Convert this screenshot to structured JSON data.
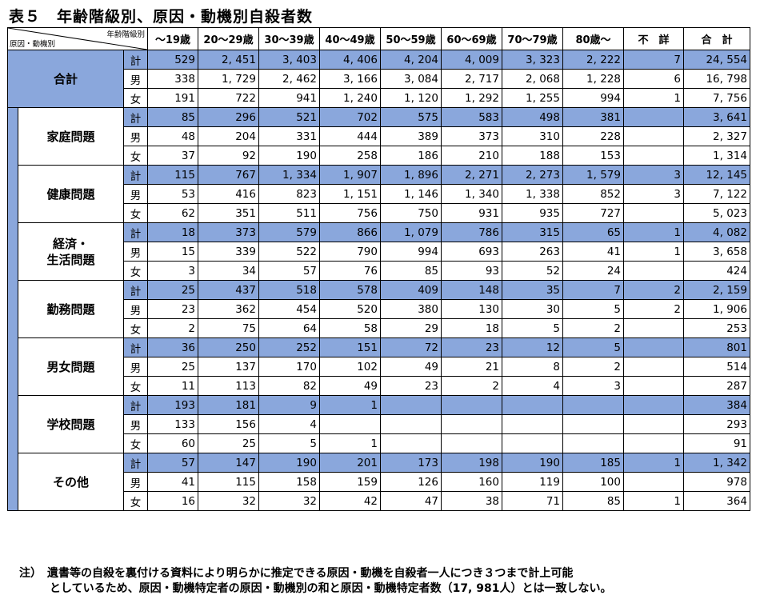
{
  "title": "表５　年齢階級別、原因・動機別自殺者数",
  "corner": {
    "top": "年齢階級別",
    "bottom": "原因・動機別"
  },
  "columns": [
    "～19歳",
    "20～29歳",
    "30～39歳",
    "40～49歳",
    "50～59歳",
    "60～69歳",
    "70～79歳",
    "80歳～",
    "不　詳",
    "合　計"
  ],
  "sex_labels": {
    "total": "計",
    "male": "男",
    "female": "女"
  },
  "groups": [
    {
      "label": "合計",
      "rows": {
        "total": [
          "529",
          "2, 451",
          "3, 403",
          "4, 406",
          "4, 204",
          "4, 009",
          "3, 323",
          "2, 222",
          "7",
          "24, 554"
        ],
        "male": [
          "338",
          "1, 729",
          "2, 462",
          "3, 166",
          "3, 084",
          "2, 717",
          "2, 068",
          "1, 228",
          "6",
          "16, 798"
        ],
        "female": [
          "191",
          "722",
          "941",
          "1, 240",
          "1, 120",
          "1, 292",
          "1, 255",
          "994",
          "1",
          "7, 756"
        ]
      }
    },
    {
      "label": "家庭問題",
      "rows": {
        "total": [
          "85",
          "296",
          "521",
          "702",
          "575",
          "583",
          "498",
          "381",
          "",
          "3, 641"
        ],
        "male": [
          "48",
          "204",
          "331",
          "444",
          "389",
          "373",
          "310",
          "228",
          "",
          "2, 327"
        ],
        "female": [
          "37",
          "92",
          "190",
          "258",
          "186",
          "210",
          "188",
          "153",
          "",
          "1, 314"
        ]
      }
    },
    {
      "label": "健康問題",
      "rows": {
        "total": [
          "115",
          "767",
          "1, 334",
          "1, 907",
          "1, 896",
          "2, 271",
          "2, 273",
          "1, 579",
          "3",
          "12, 145"
        ],
        "male": [
          "53",
          "416",
          "823",
          "1, 151",
          "1, 146",
          "1, 340",
          "1, 338",
          "852",
          "3",
          "7, 122"
        ],
        "female": [
          "62",
          "351",
          "511",
          "756",
          "750",
          "931",
          "935",
          "727",
          "",
          "5, 023"
        ]
      }
    },
    {
      "label": "経済・\n生活問題",
      "rows": {
        "total": [
          "18",
          "373",
          "579",
          "866",
          "1, 079",
          "786",
          "315",
          "65",
          "1",
          "4, 082"
        ],
        "male": [
          "15",
          "339",
          "522",
          "790",
          "994",
          "693",
          "263",
          "41",
          "1",
          "3, 658"
        ],
        "female": [
          "3",
          "34",
          "57",
          "76",
          "85",
          "93",
          "52",
          "24",
          "",
          "424"
        ]
      }
    },
    {
      "label": "勤務問題",
      "rows": {
        "total": [
          "25",
          "437",
          "518",
          "578",
          "409",
          "148",
          "35",
          "7",
          "2",
          "2, 159"
        ],
        "male": [
          "23",
          "362",
          "454",
          "520",
          "380",
          "130",
          "30",
          "5",
          "2",
          "1, 906"
        ],
        "female": [
          "2",
          "75",
          "64",
          "58",
          "29",
          "18",
          "5",
          "2",
          "",
          "253"
        ]
      }
    },
    {
      "label": "男女問題",
      "rows": {
        "total": [
          "36",
          "250",
          "252",
          "151",
          "72",
          "23",
          "12",
          "5",
          "",
          "801"
        ],
        "male": [
          "25",
          "137",
          "170",
          "102",
          "49",
          "21",
          "8",
          "2",
          "",
          "514"
        ],
        "female": [
          "11",
          "113",
          "82",
          "49",
          "23",
          "2",
          "4",
          "3",
          "",
          "287"
        ]
      }
    },
    {
      "label": "学校問題",
      "rows": {
        "total": [
          "193",
          "181",
          "9",
          "1",
          "",
          "",
          "",
          "",
          "",
          "384"
        ],
        "male": [
          "133",
          "156",
          "4",
          "",
          "",
          "",
          "",
          "",
          "",
          "293"
        ],
        "female": [
          "60",
          "25",
          "5",
          "1",
          "",
          "",
          "",
          "",
          "",
          "91"
        ]
      }
    },
    {
      "label": "その他",
      "rows": {
        "total": [
          "57",
          "147",
          "190",
          "201",
          "173",
          "198",
          "190",
          "185",
          "1",
          "1, 342"
        ],
        "male": [
          "41",
          "115",
          "158",
          "159",
          "126",
          "160",
          "119",
          "100",
          "",
          "978"
        ],
        "female": [
          "16",
          "32",
          "32",
          "42",
          "47",
          "38",
          "71",
          "85",
          "1",
          "364"
        ]
      }
    }
  ],
  "note": {
    "line1": "注）　遺書等の自殺を裏付ける資料により明らかに推定できる原因・動機を自殺者一人につき３つまで計上可能",
    "line2": "としているため、原因・動機特定者の原因・動機別の和と原因・動機特定者数（17, 981人）とは一致しない。"
  },
  "colors": {
    "highlight": "#8aa7dc"
  }
}
